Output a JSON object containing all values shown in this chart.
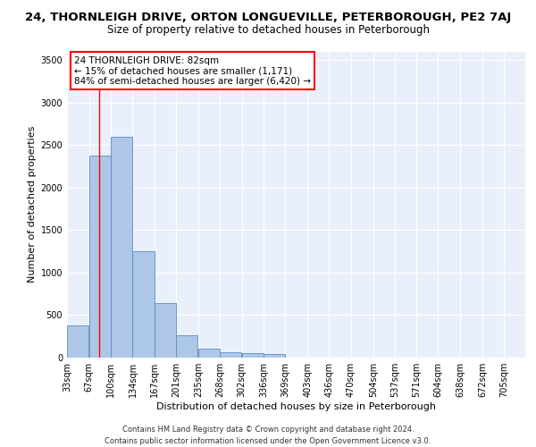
{
  "title_line1": "24, THORNLEIGH DRIVE, ORTON LONGUEVILLE, PETERBOROUGH, PE2 7AJ",
  "title_line2": "Size of property relative to detached houses in Peterborough",
  "xlabel": "Distribution of detached houses by size in Peterborough",
  "ylabel": "Number of detached properties",
  "footer_line1": "Contains HM Land Registry data © Crown copyright and database right 2024.",
  "footer_line2": "Contains public sector information licensed under the Open Government Licence v3.0.",
  "annotation_line1": "24 THORNLEIGH DRIVE: 82sqm",
  "annotation_line2": "← 15% of detached houses are smaller (1,171)",
  "annotation_line3": "84% of semi-detached houses are larger (6,420) →",
  "bar_color": "#aec6e8",
  "bar_edge_color": "#5b8ec4",
  "red_line_x": 82,
  "categories": [
    "33sqm",
    "67sqm",
    "100sqm",
    "134sqm",
    "167sqm",
    "201sqm",
    "235sqm",
    "268sqm",
    "302sqm",
    "336sqm",
    "369sqm",
    "403sqm",
    "436sqm",
    "470sqm",
    "504sqm",
    "537sqm",
    "571sqm",
    "604sqm",
    "638sqm",
    "672sqm",
    "705sqm"
  ],
  "bin_edges": [
    33,
    67,
    100,
    134,
    167,
    201,
    235,
    268,
    302,
    336,
    369,
    403,
    436,
    470,
    504,
    537,
    571,
    604,
    638,
    672,
    705
  ],
  "bin_width": 33,
  "values": [
    380,
    2380,
    2600,
    1250,
    640,
    260,
    100,
    60,
    55,
    40,
    0,
    0,
    0,
    0,
    0,
    0,
    0,
    0,
    0,
    0,
    0
  ],
  "ylim": [
    0,
    3600
  ],
  "yticks": [
    0,
    500,
    1000,
    1500,
    2000,
    2500,
    3000,
    3500
  ],
  "bg_color": "#eaf0fb",
  "grid_color": "#ffffff",
  "title1_fontsize": 9.5,
  "title2_fontsize": 8.5,
  "ylabel_fontsize": 8,
  "xlabel_fontsize": 8,
  "tick_fontsize": 7,
  "footer_fontsize": 6,
  "annotation_fontsize": 7.5
}
